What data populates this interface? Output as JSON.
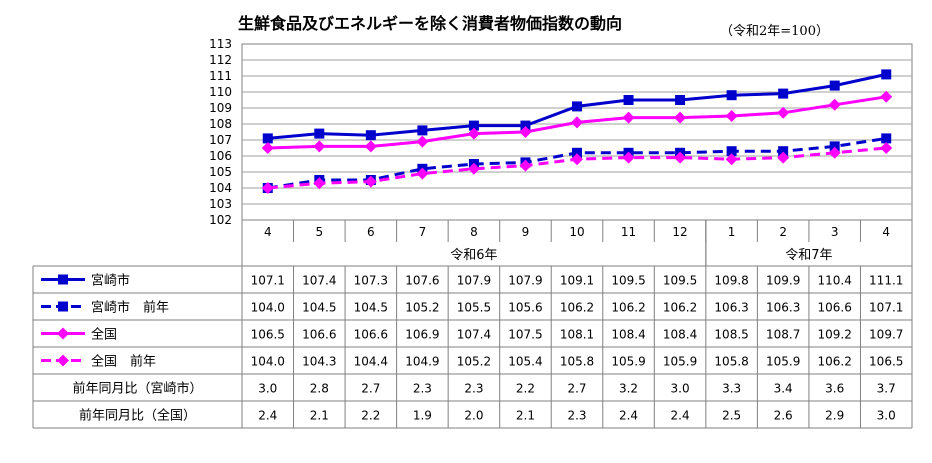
{
  "title": "生鮮食品及びエネルギーを除く消費者物価指数の動向",
  "subtitle": "（令和2年=100）",
  "chart_data": {
    "type": "line",
    "title": "生鮮食品及びエネルギーを除く消費者物価指数の動向",
    "subtitle": "（令和2年=100）",
    "categories": [
      "4",
      "5",
      "6",
      "7",
      "8",
      "9",
      "10",
      "11",
      "12",
      "1",
      "2",
      "3",
      "4"
    ],
    "year_groups": [
      {
        "label": "令和6年",
        "start": 0,
        "end": 8
      },
      {
        "label": "令和7年",
        "start": 9,
        "end": 12
      }
    ],
    "ylim": [
      102,
      113
    ],
    "yticks": [
      "102",
      "103",
      "104",
      "105",
      "106",
      "107",
      "108",
      "109",
      "110",
      "111",
      "112",
      "113"
    ],
    "grid": true,
    "series": [
      {
        "name": "宮崎市",
        "color": "#0000cc",
        "dash": false,
        "marker": "square",
        "values": [
          107.1,
          107.4,
          107.3,
          107.6,
          107.9,
          107.9,
          109.1,
          109.5,
          109.5,
          109.8,
          109.9,
          110.4,
          111.1
        ]
      },
      {
        "name": "宮崎市　前年",
        "color": "#0000cc",
        "dash": true,
        "marker": "square",
        "values": [
          104.0,
          104.5,
          104.5,
          105.2,
          105.5,
          105.6,
          106.2,
          106.2,
          106.2,
          106.3,
          106.3,
          106.6,
          107.1
        ]
      },
      {
        "name": "全国",
        "color": "#ff00ff",
        "dash": false,
        "marker": "diamond",
        "values": [
          106.5,
          106.6,
          106.6,
          106.9,
          107.4,
          107.5,
          108.1,
          108.4,
          108.4,
          108.5,
          108.7,
          109.2,
          109.7
        ]
      },
      {
        "name": "全国　前年",
        "color": "#ff00ff",
        "dash": true,
        "marker": "diamond",
        "values": [
          104.0,
          104.3,
          104.4,
          104.9,
          105.2,
          105.4,
          105.8,
          105.9,
          105.9,
          105.8,
          105.9,
          106.2,
          106.5
        ]
      }
    ],
    "extra_rows": [
      {
        "name": "前年同月比（宮崎市）",
        "values": [
          "3.0",
          "2.8",
          "2.7",
          "2.3",
          "2.3",
          "2.2",
          "2.7",
          "3.2",
          "3.0",
          "3.3",
          "3.4",
          "3.6",
          "3.7"
        ]
      },
      {
        "name": "前年同月比（全国）",
        "values": [
          "2.4",
          "2.1",
          "2.2",
          "1.9",
          "2.0",
          "2.1",
          "2.3",
          "2.4",
          "2.4",
          "2.5",
          "2.6",
          "2.9",
          "3.0"
        ]
      }
    ]
  }
}
